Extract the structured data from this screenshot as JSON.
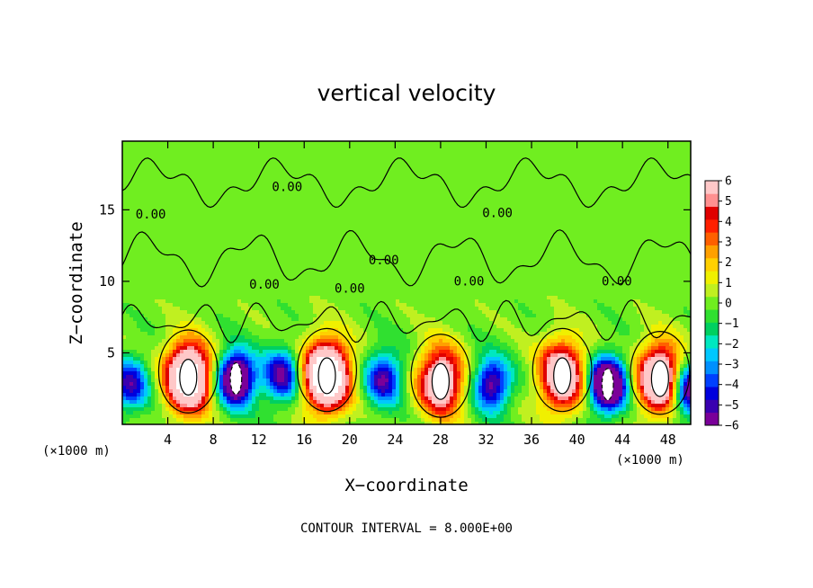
{
  "chart_data": {
    "type": "heatmap",
    "title": "vertical velocity",
    "xlabel": "X−coordinate",
    "ylabel": "Z−coordinate",
    "x_unit": "(×1000 m)",
    "xlim": [
      0,
      50
    ],
    "ylim": [
      0,
      19.8
    ],
    "x_ticks": [
      "4",
      "8",
      "12",
      "16",
      "20",
      "24",
      "28",
      "32",
      "36",
      "40",
      "44",
      "48"
    ],
    "y_ticks": [
      "5",
      "10",
      "15"
    ],
    "colorbar": {
      "ticks": [
        "6",
        "5",
        "4",
        "3",
        "2",
        "1",
        "0",
        "−1",
        "−2",
        "−3",
        "−4",
        "−5",
        "−6"
      ],
      "colors": [
        "#7a0099",
        "#3a00b0",
        "#0000dd",
        "#0040ff",
        "#0090ff",
        "#00c8ff",
        "#00e8c0",
        "#00d060",
        "#30e030",
        "#70ee20",
        "#c0f020",
        "#f0f000",
        "#ffd000",
        "#ffa000",
        "#ff6000",
        "#ff2000",
        "#e00000",
        "#ff9090",
        "#ffc8c8"
      ],
      "range": [
        -6,
        6
      ]
    },
    "contour_interval": "CONTOUR INTERVAL = 8.000E+00",
    "contour_labels": [
      "0.00",
      "0.00",
      "0.00",
      "0.00",
      "0.00",
      "0.00",
      "0.00",
      "0.00"
    ],
    "updrafts": [
      {
        "x": 5.8,
        "z": 3.3,
        "amp": 11
      },
      {
        "x": 18.0,
        "z": 3.4,
        "amp": 12
      },
      {
        "x": 28.0,
        "z": 3.0,
        "amp": 8
      },
      {
        "x": 38.7,
        "z": 3.4,
        "amp": 8.5
      },
      {
        "x": 47.3,
        "z": 3.2,
        "amp": 9.5
      }
    ],
    "downdrafts": [
      {
        "x": 0.7,
        "z": 2.8,
        "amp": -5
      },
      {
        "x": 10.0,
        "z": 3.2,
        "amp": -9
      },
      {
        "x": 14.0,
        "z": 3.4,
        "amp": -5.5
      },
      {
        "x": 23.0,
        "z": 3.2,
        "amp": -5.5
      },
      {
        "x": 32.5,
        "z": 2.8,
        "amp": -6
      },
      {
        "x": 42.7,
        "z": 2.8,
        "amp": -10
      },
      {
        "x": 49.8,
        "z": 2.4,
        "amp": -7
      }
    ]
  }
}
